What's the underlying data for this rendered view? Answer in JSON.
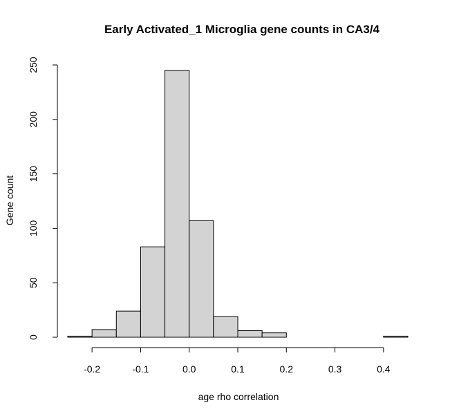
{
  "chart_data": {
    "type": "bar",
    "title": "Early Activated_1 Microglia gene counts in CA3/4",
    "xlabel": "age rho correlation",
    "ylabel": "Gene count",
    "bin_edges": [
      -0.25,
      -0.2,
      -0.15,
      -0.1,
      -0.05,
      0.0,
      0.05,
      0.1,
      0.15,
      0.2,
      0.25,
      0.3,
      0.35,
      0.4,
      0.45
    ],
    "values": [
      1,
      7,
      24,
      83,
      245,
      107,
      19,
      6,
      4,
      0,
      0,
      0,
      0,
      1
    ],
    "xticks": [
      -0.2,
      -0.1,
      0.0,
      0.1,
      0.2,
      0.3,
      0.4
    ],
    "xtick_labels": [
      "-0.2",
      "-0.1",
      "0.0",
      "0.1",
      "0.2",
      "0.3",
      "0.4"
    ],
    "yticks": [
      0,
      50,
      100,
      150,
      200,
      250
    ],
    "ytick_labels": [
      "0",
      "50",
      "100",
      "150",
      "200",
      "250"
    ],
    "xlim": [
      -0.25,
      0.45
    ],
    "ylim": [
      0,
      250
    ],
    "bar_color": "#d3d3d3",
    "grid": false
  }
}
